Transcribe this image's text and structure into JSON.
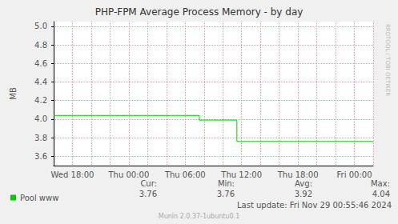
{
  "chart_data": {
    "type": "line",
    "title": "PHP-FPM Average Process Memory - by day",
    "y_label": "MB",
    "categories": [
      null,
      null,
      "Wed 18:00",
      null,
      null,
      null,
      null,
      null,
      "Thu 00:00",
      null,
      null,
      null,
      null,
      null,
      "Thu 06:00",
      null,
      null,
      null,
      null,
      null,
      "Thu 12:00",
      null,
      null,
      null,
      null,
      null,
      "Thu 18:00",
      null,
      null,
      null,
      null,
      null,
      "Fri 00:00",
      null,
      null
    ],
    "series": [
      {
        "name": "Pool www",
        "color": "#00cc00",
        "values": [
          4.04,
          4.04,
          4.04,
          4.04,
          4.04,
          4.04,
          4.04,
          4.04,
          4.04,
          4.04,
          4.04,
          4.04,
          4.04,
          4.04,
          4.04,
          4.04,
          3.99,
          3.99,
          3.99,
          3.99,
          3.76,
          3.76,
          3.76,
          3.76,
          3.76,
          3.76,
          3.76,
          3.76,
          3.76,
          3.76,
          3.76,
          3.76,
          3.76,
          3.76,
          3.76
        ]
      }
    ],
    "ylim": [
      3.5,
      5.05
    ],
    "yticks": [
      3.6,
      3.8,
      {
        "value": 4,
        "label": "4.0"
      },
      4.2,
      4.4,
      4.6,
      4.8,
      {
        "value": 5,
        "label": "5.0"
      }
    ],
    "grid": true,
    "legend": "bottom-left",
    "stats": [
      {
        "label": "Cur:",
        "value": 3.76
      },
      {
        "label": "Min:",
        "value": 3.76
      },
      {
        "label": "Avg:",
        "value": 3.92
      },
      {
        "label": "Max:",
        "value": 4.04
      }
    ],
    "last_update": "Last update: Fri Nov 29 00:55:46 2024",
    "footer": "Munin 2.0.37-1ubuntu0.1",
    "watermark": "RRDTOOL / TOBI OETIKER"
  }
}
